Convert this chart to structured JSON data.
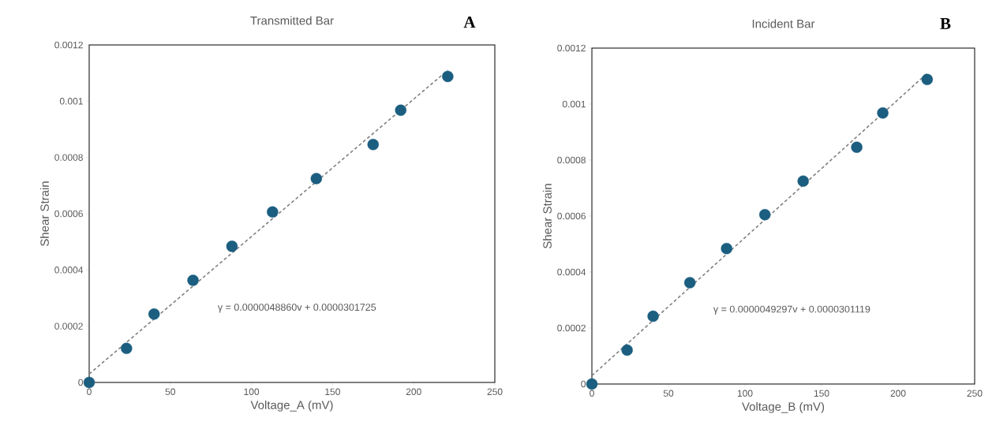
{
  "chart_data": [
    {
      "type": "scatter",
      "title": "Transmitted Bar",
      "xlabel": "Voltage_A (mV)",
      "ylabel": "Shear Strain",
      "annotations": [
        "γ = 0.0000048860v + 0.0000301725",
        "A"
      ],
      "xlim": [
        0,
        250
      ],
      "ylim": [
        0,
        0.0012
      ],
      "xticks": [
        0,
        50,
        100,
        150,
        200,
        250
      ],
      "yticks": [
        0,
        0.0002,
        0.0004,
        0.0006,
        0.0008,
        0.001,
        0.0012
      ],
      "series": [
        {
          "type": "scatter",
          "color": "#1b5e80",
          "marker": "circle",
          "x": [
            0,
            23,
            40,
            64,
            88,
            113,
            140,
            175,
            192,
            221
          ],
          "values": [
            0,
            0.000121,
            0.000243,
            0.000363,
            0.000484,
            0.000606,
            0.000725,
            0.000846,
            0.000968,
            0.001088
          ]
        },
        {
          "type": "line",
          "color": "#808080",
          "marker": "none",
          "line_style": "dashed",
          "x": [
            0,
            221
          ],
          "values": [
            3e-05,
            0.00111
          ]
        }
      ]
    },
    {
      "type": "scatter",
      "title": "Incident Bar",
      "xlabel": "Voltage_B (mV)",
      "ylabel": "Shear Strain",
      "annotations": [
        "γ = 0.0000049297v + 0.0000301119",
        "B"
      ],
      "xlim": [
        0,
        250
      ],
      "ylim": [
        0,
        0.0012
      ],
      "xticks": [
        0,
        50,
        100,
        150,
        200,
        250
      ],
      "yticks": [
        0,
        0.0002,
        0.0004,
        0.0006,
        0.0008,
        0.001,
        0.0012
      ],
      "series": [
        {
          "type": "scatter",
          "color": "#1b5e80",
          "marker": "circle",
          "x": [
            0,
            23,
            40,
            64,
            88,
            113,
            138,
            173,
            190,
            219
          ],
          "values": [
            0,
            0.000121,
            0.000242,
            0.000362,
            0.000484,
            0.000605,
            0.000725,
            0.000846,
            0.000968,
            0.001088
          ]
        },
        {
          "type": "line",
          "color": "#808080",
          "marker": "none",
          "line_style": "dashed",
          "x": [
            0,
            219
          ],
          "values": [
            3e-05,
            0.00111
          ]
        }
      ]
    }
  ]
}
